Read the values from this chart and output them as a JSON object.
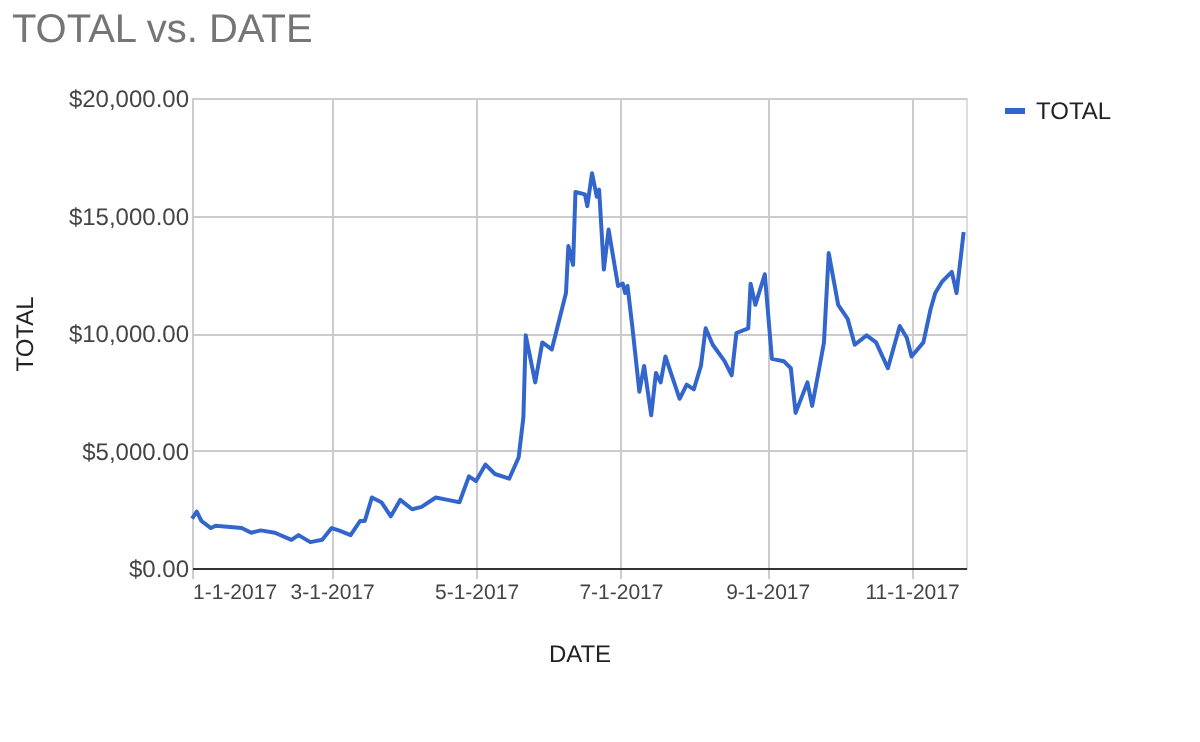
{
  "chart_data": {
    "type": "line",
    "title": "TOTAL vs. DATE",
    "xlabel": "DATE",
    "ylabel": "TOTAL",
    "x": [
      "2017-01-01",
      "2017-01-03",
      "2017-01-05",
      "2017-01-09",
      "2017-01-11",
      "2017-01-22",
      "2017-01-26",
      "2017-01-30",
      "2017-02-05",
      "2017-02-12",
      "2017-02-15",
      "2017-02-20",
      "2017-02-25",
      "2017-03-01",
      "2017-03-04",
      "2017-03-09",
      "2017-03-13",
      "2017-03-15",
      "2017-03-18",
      "2017-03-22",
      "2017-03-26",
      "2017-03-30",
      "2017-04-04",
      "2017-04-08",
      "2017-04-14",
      "2017-04-19",
      "2017-04-24",
      "2017-04-28",
      "2017-05-01",
      "2017-05-05",
      "2017-05-09",
      "2017-05-15",
      "2017-05-19",
      "2017-05-21",
      "2017-05-22",
      "2017-05-26",
      "2017-05-29",
      "2017-06-02",
      "2017-06-08",
      "2017-06-09",
      "2017-06-11",
      "2017-06-12",
      "2017-06-16",
      "2017-06-17",
      "2017-06-19",
      "2017-06-21",
      "2017-06-22",
      "2017-06-24",
      "2017-06-26",
      "2017-06-30",
      "2017-07-02",
      "2017-07-03",
      "2017-07-04",
      "2017-07-06",
      "2017-07-09",
      "2017-07-11",
      "2017-07-14",
      "2017-07-16",
      "2017-07-18",
      "2017-07-20",
      "2017-07-23",
      "2017-07-26",
      "2017-07-29",
      "2017-08-01",
      "2017-08-04",
      "2017-08-06",
      "2017-08-09",
      "2017-08-14",
      "2017-08-17",
      "2017-08-19",
      "2017-08-24",
      "2017-08-25",
      "2017-08-27",
      "2017-08-31",
      "2017-09-03",
      "2017-09-08",
      "2017-09-11",
      "2017-09-13",
      "2017-09-18",
      "2017-09-20",
      "2017-09-23",
      "2017-09-25",
      "2017-09-27",
      "2017-10-01",
      "2017-10-05",
      "2017-10-08",
      "2017-10-13",
      "2017-10-17",
      "2017-10-22",
      "2017-10-27",
      "2017-10-30",
      "2017-11-01",
      "2017-11-06",
      "2017-11-09",
      "2017-11-11",
      "2017-11-14",
      "2017-11-18",
      "2017-11-20",
      "2017-11-22",
      "2017-11-23"
    ],
    "series": [
      {
        "name": "TOTAL",
        "color": "#3366cc",
        "values": [
          2100,
          2400,
          2000,
          1700,
          1800,
          1700,
          1500,
          1600,
          1500,
          1200,
          1400,
          1100,
          1200,
          1700,
          1600,
          1400,
          2000,
          2000,
          3000,
          2800,
          2200,
          2900,
          2500,
          2600,
          3000,
          2900,
          2800,
          3900,
          3700,
          4400,
          4000,
          3800,
          4700,
          6400,
          9900,
          7900,
          9600,
          9300,
          11700,
          13700,
          12900,
          16000,
          15900,
          15400,
          16800,
          15800,
          16100,
          12700,
          14400,
          12000,
          12100,
          11700,
          12000,
          10300,
          7500,
          8600,
          6500,
          8300,
          7900,
          9000,
          8100,
          7200,
          7800,
          7600,
          8600,
          10200,
          9500,
          8800,
          8200,
          10000,
          10200,
          12100,
          11200,
          12500,
          8900,
          8800,
          8500,
          6600,
          7900,
          6900,
          8500,
          9600,
          13400,
          11200,
          10600,
          9500,
          9900,
          9600,
          8500,
          10300,
          9800,
          9000,
          9600,
          11000,
          11700,
          12200,
          12600,
          11700,
          13400,
          14300
        ]
      }
    ],
    "xlim": [
      "2017-01-01",
      "2017-11-24"
    ],
    "xticks": [
      {
        "value": "2017-01-01",
        "label": "1-1-2017"
      },
      {
        "value": "2017-03-01",
        "label": "3-1-2017"
      },
      {
        "value": "2017-05-01",
        "label": "5-1-2017"
      },
      {
        "value": "2017-07-01",
        "label": "7-1-2017"
      },
      {
        "value": "2017-09-01",
        "label": "9-1-2017"
      },
      {
        "value": "2017-11-01",
        "label": "11-1-2017"
      }
    ],
    "ylim": [
      0,
      20000
    ],
    "yticks": [
      {
        "value": 0,
        "label": "$0.00"
      },
      {
        "value": 5000,
        "label": "$5,000.00"
      },
      {
        "value": 10000,
        "label": "$10,000.00"
      },
      {
        "value": 15000,
        "label": "$15,000.00"
      },
      {
        "value": 20000,
        "label": "$20,000.00"
      }
    ],
    "grid": true,
    "legend": "top right",
    "marker": "none",
    "line_style": "solid"
  }
}
